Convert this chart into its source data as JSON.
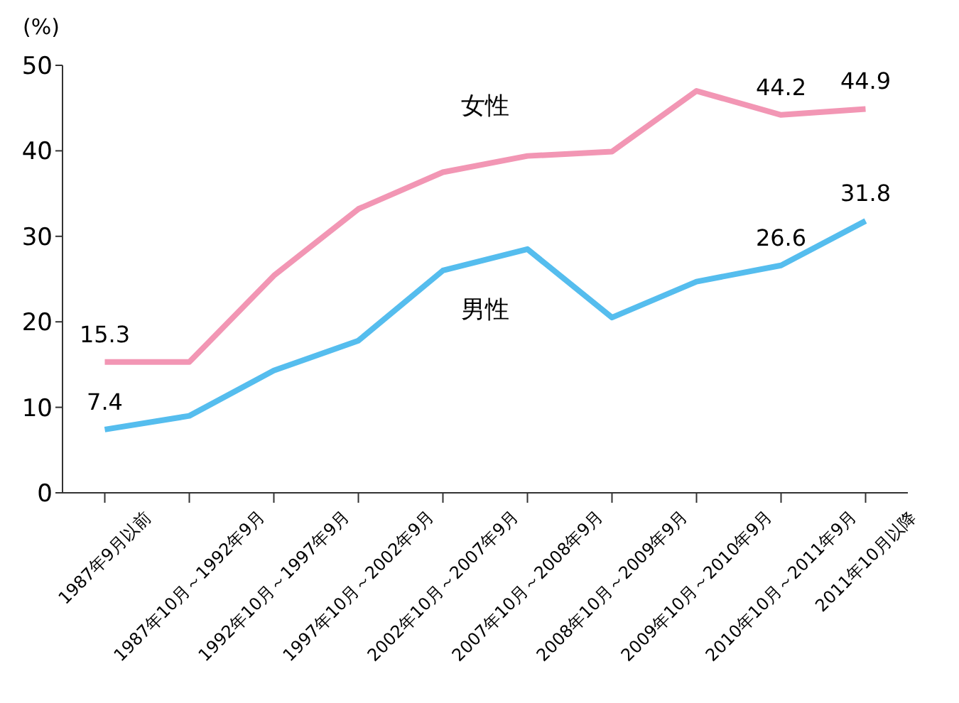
{
  "chart_data": {
    "type": "line",
    "ylabel": "(%)",
    "categories": [
      "1987年9月以前",
      "1987年10月～1992年9月",
      "1992年10月～1997年9月",
      "1997年10月～2002年9月",
      "2002年10月～2007年9月",
      "2007年10月～2008年9月",
      "2008年10月～2009年9月",
      "2009年10月～2010年9月",
      "2010年10月～2011年9月",
      "2011年10月以降"
    ],
    "series": [
      {
        "name": "女性",
        "color": "#f296b4",
        "values": [
          15.3,
          15.3,
          25.4,
          33.2,
          37.5,
          39.4,
          39.9,
          47.0,
          44.2,
          44.9
        ],
        "value_labels": [
          "15.3",
          null,
          null,
          null,
          null,
          null,
          null,
          null,
          "44.2",
          "44.9"
        ]
      },
      {
        "name": "男性",
        "color": "#55bdee",
        "values": [
          7.4,
          9.0,
          14.3,
          17.8,
          26.0,
          28.5,
          20.5,
          24.7,
          26.6,
          31.8
        ],
        "value_labels": [
          "7.4",
          null,
          null,
          null,
          null,
          null,
          null,
          null,
          "26.6",
          "31.8"
        ]
      }
    ],
    "ylim": [
      0,
      50
    ],
    "yticks": [
      0,
      10,
      20,
      30,
      40,
      50
    ],
    "grid": false,
    "legend": false,
    "marker": "none",
    "line_style": "solid"
  }
}
